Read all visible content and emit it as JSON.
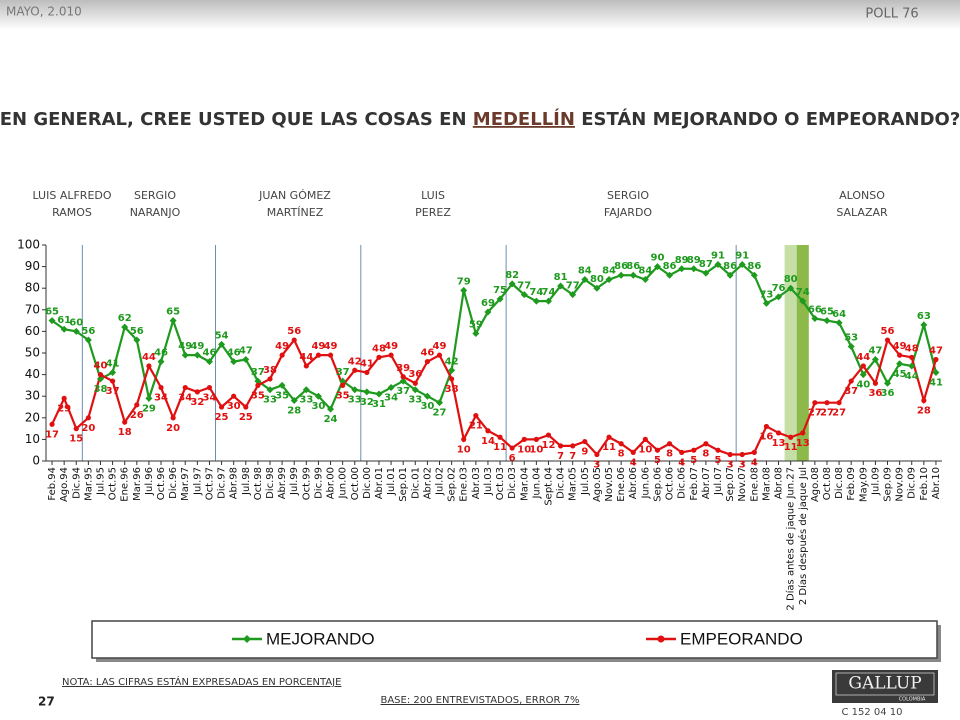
{
  "header": {
    "date": "MAYO, 2.010",
    "poll": "POLL 76",
    "title_before": "EN GENERAL, CREE USTED QUE LAS COSAS EN ",
    "title_highlight": "MEDELLÍN",
    "title_after": " ESTÁN MEJORANDO O EMPEORANDO?"
  },
  "chart_data": {
    "type": "line",
    "periods": [
      [
        "LUIS ALFREDO",
        "RAMOS"
      ],
      [
        "SERGIO",
        "NARANJO"
      ],
      [
        "JUAN GÓMEZ",
        "MARTÍNEZ"
      ],
      [
        "LUIS",
        "PEREZ"
      ],
      [
        "SERGIO",
        "FAJARDO"
      ],
      [
        "ALONSO",
        "SALAZAR"
      ]
    ],
    "categories": [
      "Feb.94",
      "Ago.94",
      "Dic.94",
      "Mar.95",
      "Jul.95",
      "Oct.95",
      "Ene.96",
      "Mar.96",
      "Jul.96",
      "Oct.96",
      "Dic.96",
      "Mar.97",
      "Jul.97",
      "Oct.97",
      "Dic.97",
      "Abr.98",
      "Jul.98",
      "Oct.98",
      "Dic.98",
      "Abr.99",
      "Jul.99",
      "Oct.99",
      "Dic.99",
      "Abr.00",
      "Jun.00",
      "Oct.00",
      "Dic.00",
      "Abr.01",
      "Jul.01",
      "Sep.01",
      "Dic.01",
      "Abr.02",
      "Jul.02",
      "Sep.02",
      "Ene.03",
      "Abr.03",
      "Jul.03",
      "Oct.03",
      "Dic.03",
      "Mar.04",
      "Jun.04",
      "Sept.04",
      "Dic.04",
      "Mar.05",
      "Jul.05",
      "Ago.05",
      "Nov.05",
      "Ene.06",
      "Abr.06",
      "Jun.06",
      "Sep.06",
      "Oct.06",
      "Dic.06",
      "Feb.07",
      "Abr.07",
      "Jul.07",
      "Sep.07",
      "Nov.07",
      "Ene.08",
      "Mar.08",
      "Abr.08",
      "2 Días antes de jaque Jun.27",
      "2 Días después de jaque Jul",
      "Ago.08",
      "Oct.08",
      "Dic.08",
      "Feb.09",
      "May.09",
      "Jul.09",
      "Sep.09",
      "Nov.09",
      "Dic.09",
      "Feb.10",
      "Abr.10"
    ],
    "series": [
      {
        "name": "MEJORANDO",
        "color": "#1e9a1e",
        "marker": "diamond",
        "values": [
          65,
          61,
          60,
          56,
          38,
          41,
          62,
          56,
          29,
          46,
          65,
          49,
          49,
          46,
          54,
          46,
          47,
          37,
          33,
          35,
          28,
          33,
          30,
          24,
          37,
          33,
          32,
          31,
          34,
          37,
          33,
          30,
          27,
          42,
          79,
          59,
          69,
          75,
          82,
          77,
          74,
          74,
          81,
          77,
          84,
          80,
          84,
          86,
          86,
          84,
          90,
          86,
          89,
          89,
          87,
          91,
          86,
          91,
          86,
          73,
          76,
          80,
          74,
          66,
          65,
          64,
          53,
          40,
          47,
          36,
          45,
          44,
          63,
          41
        ]
      },
      {
        "name": "EMPEORANDO",
        "color": "#e01010",
        "marker": "circle",
        "values": [
          17,
          29,
          15,
          20,
          40,
          37,
          18,
          26,
          44,
          34,
          20,
          34,
          32,
          34,
          25,
          30,
          25,
          35,
          38,
          49,
          56,
          44,
          49,
          49,
          35,
          42,
          41,
          48,
          49,
          39,
          36,
          46,
          49,
          38,
          10,
          21,
          14,
          11,
          6,
          10,
          10,
          12,
          7,
          7,
          9,
          3,
          11,
          8,
          4,
          10,
          5,
          8,
          4,
          5,
          8,
          5,
          3,
          3,
          4,
          16,
          13,
          11,
          13,
          27,
          27,
          27,
          37,
          44,
          36,
          56,
          49,
          48,
          28,
          47
        ]
      }
    ],
    "ylim": [
      0,
      100
    ],
    "yticks": [
      0,
      10,
      20,
      30,
      40,
      50,
      60,
      70,
      80,
      90,
      100
    ],
    "grid": false,
    "highlight_colors": [
      "#c5dfa6",
      "#8cb94a"
    ]
  },
  "footer": {
    "note": "NOTA: LAS CIFRAS ESTÁN EXPRESADAS EN PORCENTAJE",
    "page": "27",
    "base": "BASE: 200 ENTREVISTADOS, ERROR 7%",
    "logo": "GALLUP",
    "logo_sub": "COLOMBIA",
    "code": "C 152 04 10"
  }
}
